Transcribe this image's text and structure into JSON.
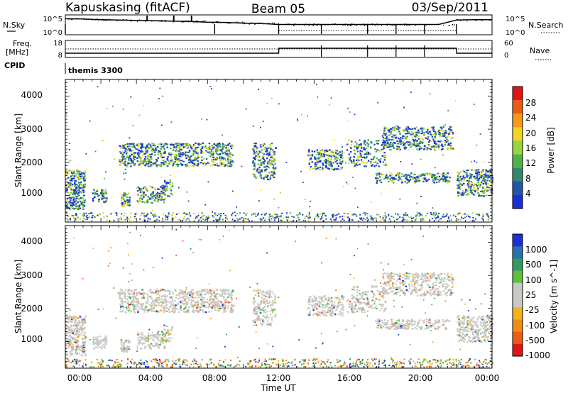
{
  "header": {
    "station": "Kapuskasing (fitACF)",
    "beam": "Beam 05",
    "date": "03/Sep/2011"
  },
  "colors": {
    "power_scale": [
      "#1a2fd6",
      "#1f58a8",
      "#2f8a6c",
      "#52b24a",
      "#9bd33a",
      "#f2d51f",
      "#f59a1a",
      "#ef5a14",
      "#e01414"
    ],
    "velocity_scale": [
      "#1d2fd6",
      "#2a6fb0",
      "#2f9a62",
      "#5cc23a",
      "#c8c8c4",
      "#c8c8c4",
      "#f2b21a",
      "#f28a16",
      "#ef5a14",
      "#e01414"
    ]
  },
  "chart_data": [
    {
      "type": "line",
      "name": "noise-panel",
      "left_label": "N.Sky",
      "right_label": "N.Search",
      "left_ticks": [
        "10^5",
        "10^0"
      ],
      "right_ticks": [
        "10^5",
        "10^0"
      ],
      "x": [
        0,
        1,
        2,
        3,
        4,
        5,
        6,
        7,
        8,
        9,
        10,
        11,
        12,
        13,
        14,
        15,
        16,
        17,
        18,
        19,
        20,
        21,
        22,
        23,
        24
      ],
      "series": [
        {
          "values": [
            4.3,
            4.2,
            4.0,
            3.9,
            3.8,
            3.7,
            3.6,
            3.5,
            3.3,
            3.2,
            3.0,
            2.9,
            2.6,
            2.6,
            2.6,
            2.6,
            2.6,
            2.6,
            2.6,
            2.6,
            2.6,
            2.6,
            3.9,
            4.0,
            4.0
          ]
        }
      ]
    },
    {
      "type": "line",
      "name": "frequency-panel",
      "left_label": "Freq.",
      "left_unit": "[MHz]",
      "right_label": "Nave",
      "left_ticks": [
        "18",
        "8"
      ],
      "right_ticks": [
        "60",
        "0"
      ],
      "cpid_label": "CPID",
      "cpid_value": "themis 3300",
      "x": [
        0,
        12,
        12.01,
        22,
        22.01,
        24
      ],
      "series": [
        {
          "values": [
            10,
            10,
            13.5,
            13.5,
            10,
            10
          ]
        }
      ]
    },
    {
      "type": "heatmap",
      "name": "power-panel",
      "ylabel": "Slant Range [km]",
      "y_ticks": [
        "1000",
        "2000",
        "3000",
        "4000"
      ],
      "ylim": [
        200,
        4500
      ],
      "colorbar_label": "Power [dB]",
      "colorbar_ticks": [
        "4",
        "8",
        "12",
        "16",
        "20",
        "24",
        "28"
      ]
    },
    {
      "type": "heatmap",
      "name": "velocity-panel",
      "ylabel": "Slant Range [km]",
      "y_ticks": [
        "1000",
        "2000",
        "3000",
        "4000"
      ],
      "ylim": [
        200,
        4500
      ],
      "colorbar_label": "Velocity [m s^-1]",
      "colorbar_ticks": [
        "1000",
        "500",
        "100",
        "25",
        "-25",
        "-100",
        "-500",
        "-1000"
      ],
      "x_ticks": [
        "00:00",
        "04:00",
        "08:00",
        "12:00",
        "16:00",
        "20:00",
        "00:00"
      ],
      "xlabel": "Time UT"
    }
  ]
}
